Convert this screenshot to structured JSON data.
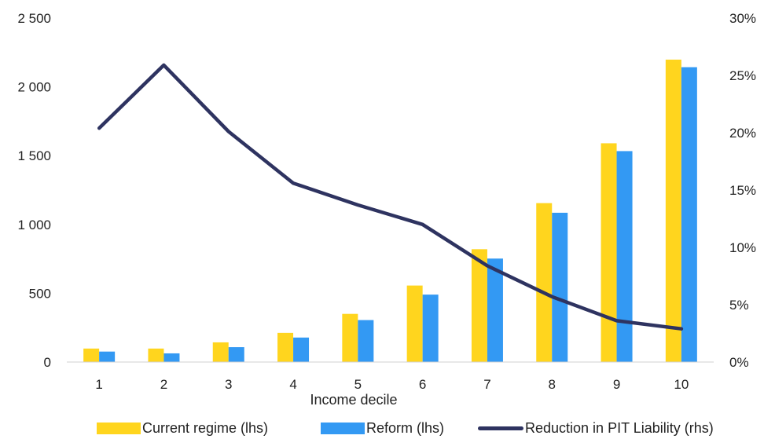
{
  "chart_data": {
    "type": "bar",
    "categories": [
      "1",
      "2",
      "3",
      "4",
      "5",
      "6",
      "7",
      "8",
      "9",
      "10"
    ],
    "xlabel": "Income decile",
    "series": [
      {
        "name": "Current regime (lhs)",
        "kind": "bar",
        "axis": "left",
        "color": "#FFD51E",
        "values": [
          98,
          98,
          143,
          212,
          350,
          556,
          820,
          1155,
          1590,
          2198
        ]
      },
      {
        "name": "Reform (lhs)",
        "kind": "bar",
        "axis": "left",
        "color": "#3399F3",
        "values": [
          76,
          63,
          108,
          178,
          305,
          490,
          752,
          1085,
          1533,
          2143
        ]
      },
      {
        "name": "Reduction in PIT Liability (rhs)",
        "kind": "line",
        "axis": "right",
        "color": "#2E3360",
        "values": [
          0.204,
          0.259,
          0.201,
          0.156,
          0.137,
          0.12,
          0.084,
          0.057,
          0.036,
          0.029
        ]
      }
    ],
    "y_left": {
      "min": 0,
      "max": 2500,
      "ticks": [
        "0",
        "500",
        "1 000",
        "1 500",
        "2 000",
        "2 500"
      ]
    },
    "y_right": {
      "min": 0,
      "max": 0.3,
      "ticks": [
        "0%",
        "5%",
        "10%",
        "15%",
        "20%",
        "25%",
        "30%"
      ]
    },
    "grid": false,
    "legend_position": "bottom"
  }
}
